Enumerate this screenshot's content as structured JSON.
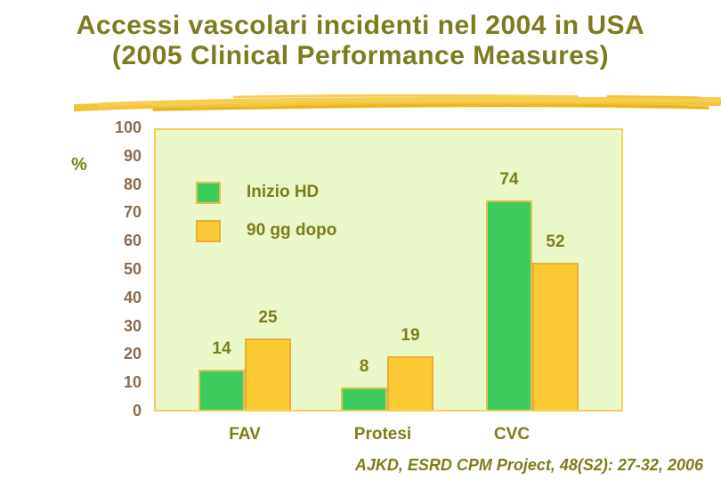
{
  "title": {
    "line1": "Accessi vascolari incidenti nel 2004 in USA",
    "line2": "(2005 Clinical Performance Measures)"
  },
  "citation": "AJKD, ESRD CPM Project, 48(S2): 27-32, 2006",
  "chart_data": {
    "type": "bar",
    "categories": [
      "FAV",
      "Protesi",
      "CVC"
    ],
    "series": [
      {
        "name": "Inizio HD",
        "values": [
          14,
          8,
          74
        ],
        "color": "#3ECC5C",
        "border_color": "#DFC24E"
      },
      {
        "name": "90 gg dopo",
        "values": [
          25,
          19,
          52
        ],
        "color": "#FCCB33",
        "border_color": "#EDA93B"
      }
    ],
    "ylabel": "%",
    "xlabel": "",
    "ylim": [
      0,
      100
    ],
    "yticks": [
      0,
      10,
      20,
      30,
      40,
      50,
      60,
      70,
      80,
      90,
      100
    ],
    "grid": false,
    "legend_position": "inside-top-left",
    "data_labels": true
  },
  "colors": {
    "bg": "#FFFFFF",
    "title_olive": "#7C7C1E",
    "label_olive": "#7D7D1A",
    "axis_brown": "#8B6A50",
    "plot_bg": "#EAF7C7",
    "plot_border": "#EFD05A",
    "swoosh_main": "#F3C433",
    "swoosh_light": "#F6CE52",
    "swoosh_dark": "#ECB51F"
  }
}
